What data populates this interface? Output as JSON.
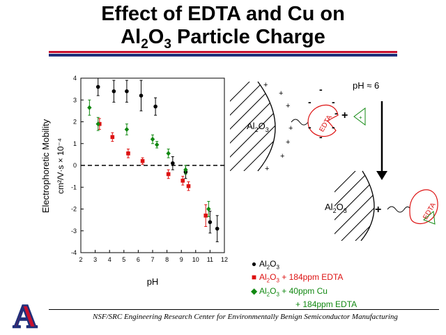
{
  "title": {
    "line1": "Effect of EDTA and Cu on",
    "line2_pre": "Al",
    "line2_sub1": "2",
    "line2_mid": "O",
    "line2_sub2": "3",
    "line2_post": " Particle Charge"
  },
  "colors": {
    "rule_red": "#c8102e",
    "rule_blue": "#1f2f7a",
    "series_black": "#000000",
    "series_red": "#dd1111",
    "series_green": "#118811"
  },
  "chart_data": {
    "type": "scatter",
    "xlabel": "pH",
    "ylabel_line1": "Electrophoretic Mobility",
    "ylabel_line2": "cm²/V·s × 10⁻⁴",
    "xlim": [
      2,
      12
    ],
    "ylim": [
      -4,
      4
    ],
    "xticks": [
      "2",
      "3",
      "4",
      "5",
      "6",
      "7",
      "8",
      "9",
      "10",
      "11",
      "12"
    ],
    "yticks": [
      "-4",
      "-3",
      "-2",
      "-1",
      "0",
      "1",
      "2",
      "3",
      "4"
    ],
    "zero_line": "dashed",
    "series": [
      {
        "name": "Al2O3",
        "marker": "circle",
        "color": "black",
        "points": [
          {
            "x": 3.2,
            "y": 3.6,
            "err": 0.4
          },
          {
            "x": 4.3,
            "y": 3.4,
            "err": 0.5
          },
          {
            "x": 5.2,
            "y": 3.4,
            "err": 0.5
          },
          {
            "x": 6.2,
            "y": 3.2,
            "err": 0.7
          },
          {
            "x": 7.2,
            "y": 2.7,
            "err": 0.4
          },
          {
            "x": 8.4,
            "y": 0.1,
            "err": 0.3
          },
          {
            "x": 9.3,
            "y": -0.3,
            "err": 0.3
          },
          {
            "x": 11.0,
            "y": -2.6,
            "err": 0.5
          },
          {
            "x": 11.5,
            "y": -2.9,
            "err": 0.6
          }
        ]
      },
      {
        "name": "Al2O3 + 184ppm EDTA",
        "marker": "square",
        "color": "red",
        "points": [
          {
            "x": 3.3,
            "y": 1.9,
            "err": 0.25
          },
          {
            "x": 4.2,
            "y": 1.3,
            "err": 0.2
          },
          {
            "x": 5.3,
            "y": 0.55,
            "err": 0.2
          },
          {
            "x": 6.3,
            "y": 0.2,
            "err": 0.15
          },
          {
            "x": 8.1,
            "y": -0.4,
            "err": 0.2
          },
          {
            "x": 9.1,
            "y": -0.7,
            "err": 0.2
          },
          {
            "x": 9.5,
            "y": -0.95,
            "err": 0.2
          },
          {
            "x": 10.7,
            "y": -2.3,
            "err": 0.5
          }
        ]
      },
      {
        "name": "Al2O3 + 40ppm Cu + 184ppm EDTA",
        "marker": "diamond",
        "color": "green",
        "points": [
          {
            "x": 2.6,
            "y": 2.65,
            "err": 0.35
          },
          {
            "x": 3.2,
            "y": 1.9,
            "err": 0.3
          },
          {
            "x": 5.2,
            "y": 1.65,
            "err": 0.25
          },
          {
            "x": 7.0,
            "y": 1.2,
            "err": 0.2
          },
          {
            "x": 7.3,
            "y": 0.95,
            "err": 0.15
          },
          {
            "x": 8.1,
            "y": 0.55,
            "err": 0.2
          },
          {
            "x": 9.3,
            "y": -0.2,
            "err": 0.2
          },
          {
            "x": 10.9,
            "y": -2.0,
            "err": 0.35
          }
        ]
      }
    ]
  },
  "legend": {
    "item1": {
      "pre": "Al",
      "s1": "2",
      "mid": "O",
      "s2": "3",
      "post": ""
    },
    "item2": {
      "pre": "Al",
      "s1": "2",
      "mid": "O",
      "s2": "3",
      "post": " + 184ppm EDTA"
    },
    "item3": {
      "pre": "Al",
      "s1": "2",
      "mid": "O",
      "s2": "3",
      "post": " + 40ppm Cu"
    },
    "item3_line2": "+ 184ppm EDTA"
  },
  "diagram": {
    "ph_label": "pH ≈ 6",
    "particle_label": {
      "pre": "Al",
      "s1": "2",
      "mid": "O",
      "s2": "3"
    },
    "edta_label": "EDTA",
    "plus": "+",
    "minus": "-"
  },
  "footer": "NSF/SRC Engineering Research Center for Environmentally Benign Semiconductor Manufacturing",
  "logo_letter": "A"
}
